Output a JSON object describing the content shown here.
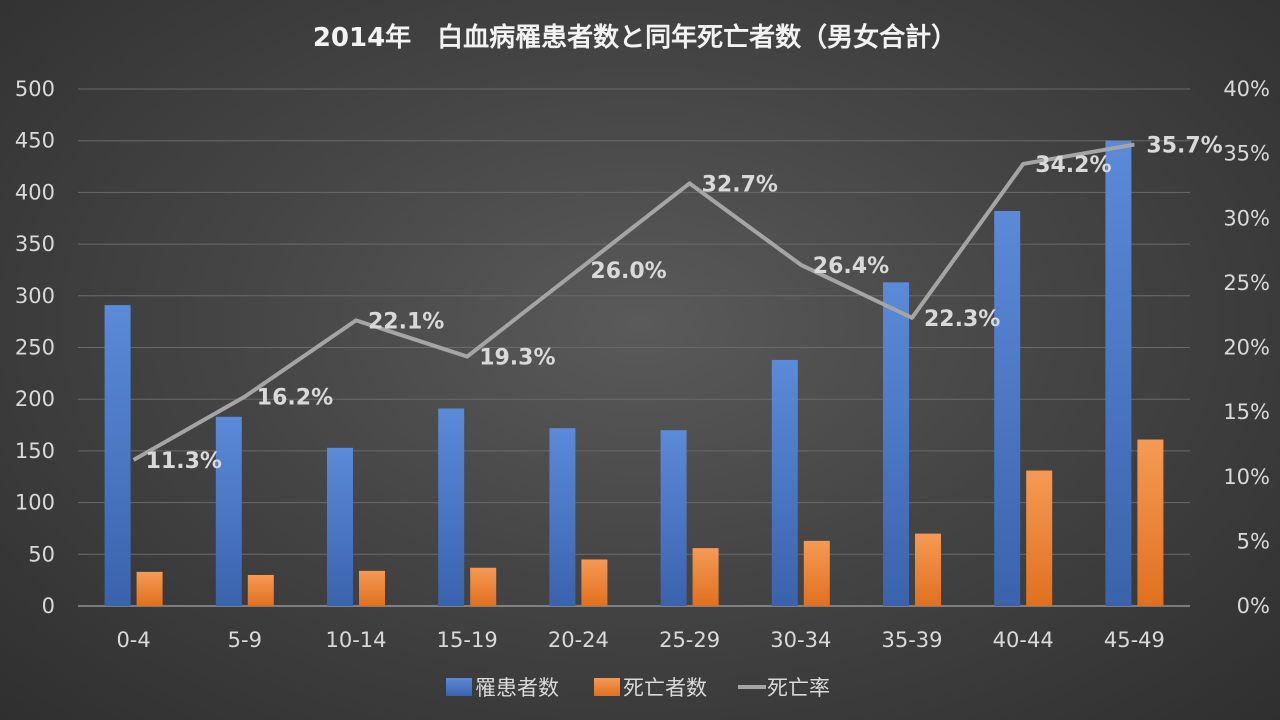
{
  "chart_data": {
    "type": "bar",
    "title": "2014年　白血病罹患者数と同年死亡者数（男女合計）",
    "categories": [
      "0-4",
      "5-9",
      "10-14",
      "15-19",
      "20-24",
      "25-29",
      "30-34",
      "35-39",
      "40-44",
      "45-49"
    ],
    "series": [
      {
        "name": "罹患者数",
        "type": "bar",
        "axis": "left",
        "color": "#4472c4",
        "values": [
          291,
          183,
          153,
          191,
          172,
          170,
          238,
          313,
          382,
          450
        ]
      },
      {
        "name": "死亡者数",
        "type": "bar",
        "axis": "left",
        "color": "#ed7d31",
        "values": [
          33,
          30,
          34,
          37,
          45,
          56,
          63,
          70,
          131,
          161
        ]
      },
      {
        "name": "死亡率",
        "type": "line",
        "axis": "right",
        "color": "#a5a5a5",
        "values": [
          11.3,
          16.2,
          22.1,
          19.3,
          26.0,
          32.7,
          26.4,
          22.3,
          34.2,
          35.7
        ],
        "labels": [
          "11.3%",
          "16.2%",
          "22.1%",
          "19.3%",
          "26.0%",
          "32.7%",
          "26.4%",
          "22.3%",
          "34.2%",
          "35.7%"
        ]
      }
    ],
    "y_left": {
      "min": 0,
      "max": 500,
      "step": 50,
      "ticks": [
        "0",
        "50",
        "100",
        "150",
        "200",
        "250",
        "300",
        "350",
        "400",
        "450",
        "500"
      ]
    },
    "y_right": {
      "min": 0,
      "max": 40,
      "step": 5,
      "ticks": [
        "0%",
        "5%",
        "10%",
        "15%",
        "20%",
        "25%",
        "30%",
        "35%",
        "40%"
      ]
    },
    "grid": true,
    "legend_position": "bottom"
  }
}
